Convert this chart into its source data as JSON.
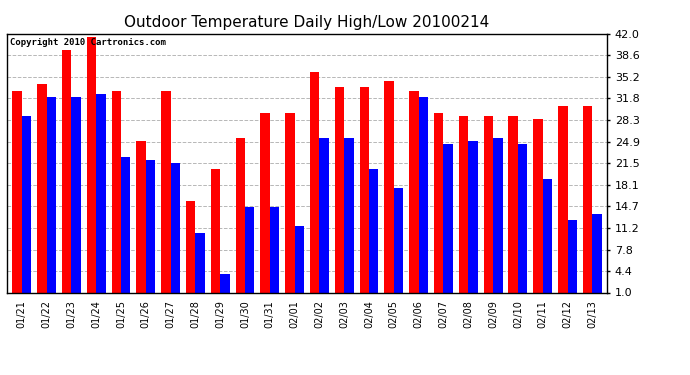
{
  "title": "Outdoor Temperature Daily High/Low 20100214",
  "copyright": "Copyright 2010 Cartronics.com",
  "dates": [
    "01/21",
    "01/22",
    "01/23",
    "01/24",
    "01/25",
    "01/26",
    "01/27",
    "01/28",
    "01/29",
    "01/30",
    "01/31",
    "02/01",
    "02/02",
    "02/03",
    "02/04",
    "02/05",
    "02/06",
    "02/07",
    "02/08",
    "02/09",
    "02/10",
    "02/11",
    "02/12",
    "02/13"
  ],
  "highs": [
    33.0,
    34.0,
    39.5,
    41.5,
    33.0,
    25.0,
    33.0,
    15.5,
    20.5,
    25.5,
    29.5,
    29.5,
    36.0,
    33.5,
    33.5,
    34.5,
    33.0,
    29.5,
    29.0,
    29.0,
    29.0,
    28.5,
    30.5,
    30.5
  ],
  "lows": [
    29.0,
    32.0,
    32.0,
    32.5,
    22.5,
    22.0,
    21.5,
    10.5,
    4.0,
    14.5,
    14.5,
    11.5,
    25.5,
    25.5,
    20.5,
    17.5,
    32.0,
    24.5,
    25.0,
    25.5,
    24.5,
    19.0,
    12.5,
    13.5
  ],
  "high_color": "#ff0000",
  "low_color": "#0000ff",
  "bg_color": "#ffffff",
  "grid_color": "#b0b0b0",
  "yticks": [
    1.0,
    4.4,
    7.8,
    11.2,
    14.7,
    18.1,
    21.5,
    24.9,
    28.3,
    31.8,
    35.2,
    38.6,
    42.0
  ],
  "ymin": 1.0,
  "ymax": 42.0,
  "title_fontsize": 11,
  "tick_fontsize": 8,
  "xtick_fontsize": 7
}
